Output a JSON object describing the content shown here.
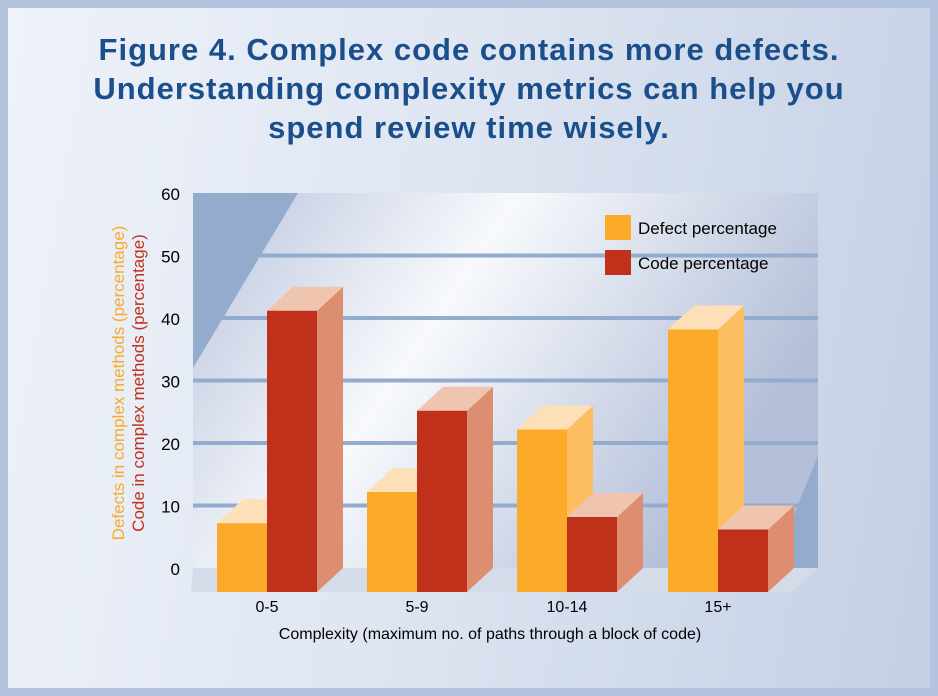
{
  "title_lines": [
    "Figure 4. Complex code contains more defects.",
    "Understanding complexity metrics can help you",
    "spend review time wisely."
  ],
  "chart_data": {
    "type": "bar",
    "style": "3d-grouped",
    "categories": [
      "0-5",
      "5-9",
      "10-14",
      "15+"
    ],
    "series": [
      {
        "name": "Defect percentage",
        "values": [
          11,
          16,
          26,
          42
        ],
        "color": "#fbaa2a"
      },
      {
        "name": "Code percentage",
        "values": [
          45,
          29,
          12,
          10
        ],
        "color": "#bf311b"
      }
    ],
    "ylabels": [
      {
        "text": "Defects in complex methods (percentage)",
        "color": "#fbaa2a"
      },
      {
        "text": "Code in complex methods (percentage)",
        "color": "#bf311b"
      }
    ],
    "xlabel": "Complexity (maximum no. of paths through a block of code)",
    "ylim": [
      0,
      60
    ],
    "yticks": [
      "0",
      "10",
      "20",
      "30",
      "40",
      "50",
      "60"
    ],
    "grid": true,
    "legend_position": "top-right"
  }
}
